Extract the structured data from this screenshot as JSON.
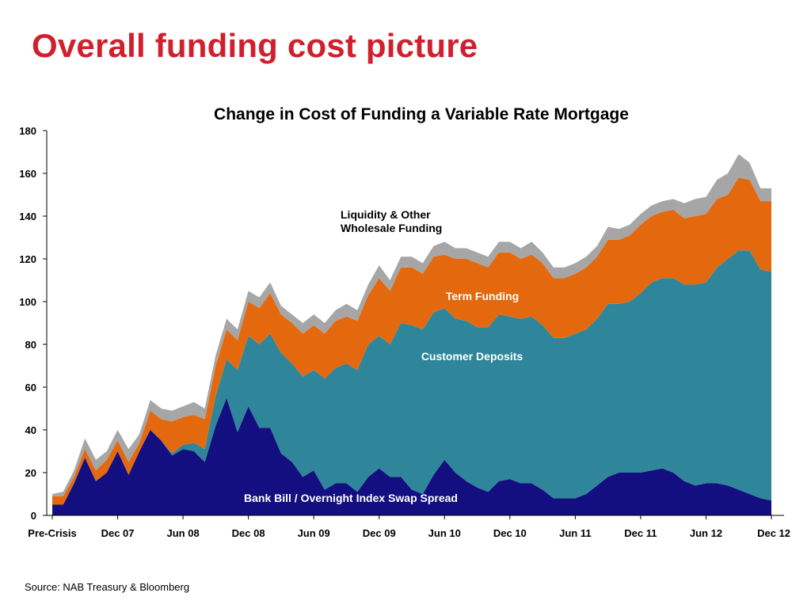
{
  "page": {
    "title": "Overall funding cost picture",
    "source": "Source: NAB Treasury & Bloomberg"
  },
  "chart_data": {
    "type": "area",
    "stacked": true,
    "title": "Change in Cost of Funding a Variable Rate Mortgage",
    "xlabel": "",
    "ylabel": "",
    "ylim": [
      0,
      180
    ],
    "yticks": [
      "0",
      "20",
      "40",
      "60",
      "80",
      "100",
      "120",
      "140",
      "160",
      "180"
    ],
    "x_labels": [
      "Pre-Crisis",
      "Dec 07",
      "Jun 08",
      "Dec 08",
      "Jun 09",
      "Dec 09",
      "Jun 10",
      "Dec 10",
      "Jun 11",
      "Dec 11",
      "Jun 12",
      "Dec 12"
    ],
    "x_label_index": [
      0,
      6,
      12,
      18,
      24,
      30,
      36,
      42,
      48,
      54,
      60,
      66
    ],
    "grid": false,
    "colors": {
      "bank_bill": "#140f80",
      "customer_deposits": "#2f869b",
      "term_funding": "#e4690e",
      "liquidity": "#a6a6a6"
    },
    "series": [
      {
        "key": "bank_bill",
        "name": "Bank Bill / Overnight Index Swap Spread",
        "values": [
          5,
          5,
          15,
          27,
          16,
          20,
          30,
          19,
          30,
          40,
          35,
          28,
          31,
          30,
          25,
          42,
          55,
          39,
          51,
          41,
          41,
          29,
          25,
          18,
          21,
          12,
          15,
          15,
          11,
          18,
          22,
          18,
          18,
          12,
          10,
          19,
          26,
          20,
          16,
          13,
          11,
          16,
          17,
          15,
          15,
          12,
          8,
          8,
          8,
          10,
          14,
          18,
          20,
          20,
          20,
          21,
          22,
          20,
          16,
          14,
          15,
          15,
          14,
          12,
          10,
          8,
          7
        ]
      },
      {
        "key": "customer_deposits",
        "name": "Customer Deposits",
        "values": [
          0,
          0,
          0,
          0,
          0,
          0,
          0,
          0,
          0,
          0,
          0,
          1,
          2,
          4,
          6,
          14,
          18,
          29,
          33,
          39,
          44,
          47,
          46,
          47,
          47,
          52,
          54,
          56,
          57,
          62,
          62,
          62,
          72,
          77,
          77,
          76,
          71,
          72,
          75,
          75,
          77,
          78,
          76,
          77,
          78,
          77,
          75,
          75,
          77,
          77,
          78,
          81,
          79,
          80,
          84,
          88,
          89,
          91,
          92,
          94,
          94,
          101,
          106,
          112,
          114,
          107,
          107
        ]
      },
      {
        "key": "term_funding",
        "name": "Term Funding",
        "values": [
          4,
          4,
          3,
          4,
          5,
          6,
          5,
          6,
          4,
          9,
          10,
          15,
          13,
          13,
          14,
          14,
          14,
          14,
          16,
          17,
          19,
          18,
          19,
          20,
          21,
          21,
          22,
          22,
          23,
          23,
          27,
          25,
          26,
          27,
          26,
          26,
          25,
          28,
          29,
          30,
          28,
          29,
          30,
          28,
          29,
          29,
          28,
          28,
          28,
          29,
          29,
          30,
          30,
          31,
          32,
          31,
          31,
          32,
          31,
          32,
          32,
          32,
          30,
          34,
          33,
          32,
          33
        ]
      },
      {
        "key": "liquidity",
        "name": "Liquidity & Other Wholesale Funding",
        "values": [
          1,
          2,
          3,
          5,
          5,
          4,
          5,
          6,
          4,
          5,
          5,
          5,
          5,
          6,
          5,
          5,
          5,
          5,
          5,
          5,
          5,
          4,
          4,
          5,
          5,
          5,
          5,
          6,
          5,
          5,
          6,
          5,
          5,
          5,
          5,
          5,
          6,
          5,
          5,
          5,
          5,
          5,
          5,
          5,
          6,
          5,
          5,
          5,
          5,
          5,
          5,
          6,
          5,
          5,
          5,
          5,
          5,
          5,
          7,
          8,
          8,
          9,
          10,
          11,
          8,
          6,
          6
        ]
      }
    ]
  }
}
